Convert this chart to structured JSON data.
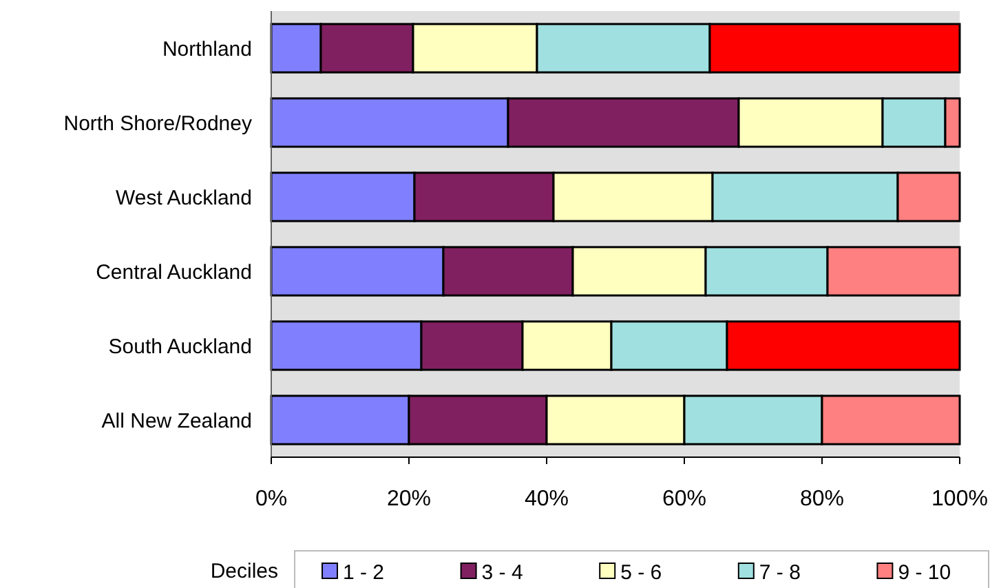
{
  "chart_data": {
    "type": "bar",
    "orientation": "horizontal",
    "stacked": true,
    "categories": [
      "Northland",
      "North Shore/Rodney",
      "West Auckland",
      "Central Auckland",
      "South Auckland",
      "All New Zealand"
    ],
    "series": [
      {
        "name": "1 - 2",
        "color": "#8080ff",
        "values": [
          7.2,
          34.4,
          20.8,
          25.0,
          21.8,
          20
        ]
      },
      {
        "name": "3 - 4",
        "color": "#802060",
        "values": [
          13.4,
          33.5,
          20.2,
          18.8,
          14.7,
          20
        ]
      },
      {
        "name": "5 - 6",
        "color": "#ffffc0",
        "values": [
          18.0,
          20.9,
          23.1,
          19.3,
          12.9,
          20
        ]
      },
      {
        "name": "7 - 8",
        "color": "#a0e0e0",
        "values": [
          25.1,
          9.1,
          26.9,
          17.7,
          16.8,
          20
        ]
      },
      {
        "name": "9 - 10",
        "color": "#ff8080",
        "colors": [
          "#ff0000",
          "#ff8080",
          "#ff8080",
          "#ff8080",
          "#ff0000",
          "#ff8080"
        ],
        "values": [
          36.3,
          2.1,
          9.0,
          19.2,
          33.8,
          20
        ]
      }
    ],
    "xlim": [
      0,
      100
    ],
    "xticks": [
      {
        "value": 0,
        "label": "0%"
      },
      {
        "value": 20,
        "label": "20%"
      },
      {
        "value": 40,
        "label": "40%"
      },
      {
        "value": 60,
        "label": "60%"
      },
      {
        "value": 80,
        "label": "80%"
      },
      {
        "value": 100,
        "label": "100%"
      }
    ],
    "legend": "bottom",
    "legend_title": "Deciles",
    "grid": false
  }
}
